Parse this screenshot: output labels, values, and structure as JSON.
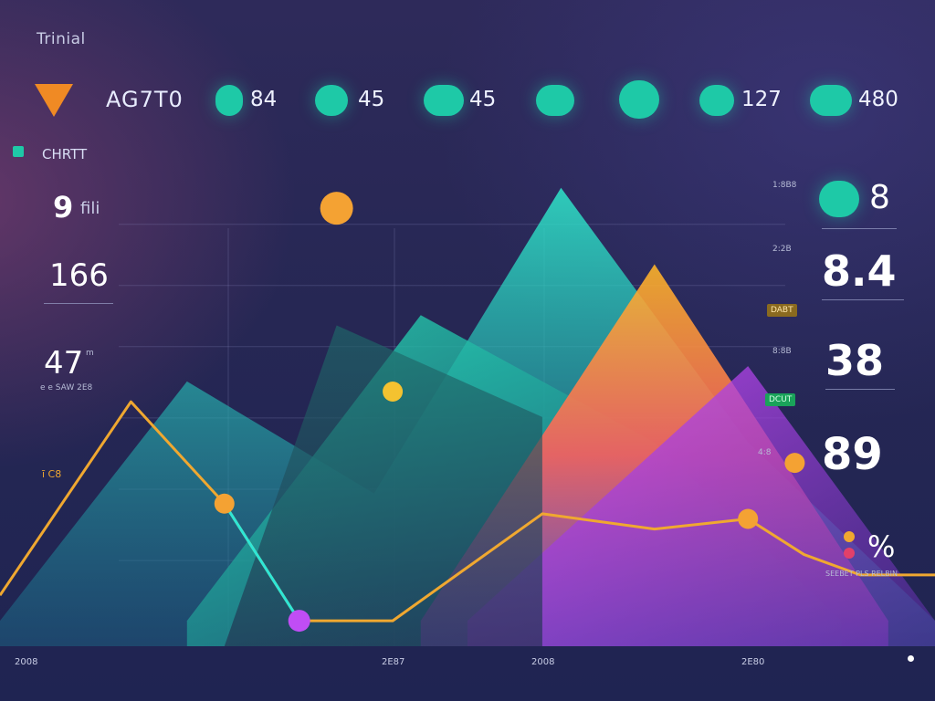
{
  "header": {
    "title": "Trinial",
    "code": "AG7T0",
    "metrics": [
      {
        "badge": "",
        "value": "84"
      },
      {
        "badge": "",
        "value": "45"
      },
      {
        "badge": "",
        "value": "45"
      },
      {
        "badge": "",
        "value": ""
      },
      {
        "badge": "",
        "value": ""
      },
      {
        "badge": "",
        "value": "127"
      },
      {
        "badge": "",
        "value": "480"
      }
    ],
    "accent": "#1ec9a7",
    "logo_color": "#f08a24"
  },
  "left_panel": {
    "chart_label": "CHRTT",
    "stat_1": "9",
    "stat_1_unit": "fili",
    "stat_2": "166",
    "stat_3": "47",
    "stat_3_unit": "m",
    "stat_3_caption": "e e SAW 2E8",
    "stat_4_caption": "ī C8"
  },
  "right_panel": {
    "stat_a": "8",
    "stat_a_tick": "1:8B8",
    "stat_b": "8.4",
    "stat_b_tick": "2:2B",
    "stat_c": "38",
    "stat_c_tick": "8:8B",
    "stat_c_badge_1": "DABT",
    "stat_c_badge_2": "DCUT",
    "stat_d": "89",
    "stat_d_tick": "4:8",
    "percent": "%",
    "percent_caption": "SEEBET PLS RELBIN"
  },
  "chart_data": {
    "type": "area",
    "x_tick_labels": [
      "2008",
      "2E87",
      "2008",
      "2E80"
    ],
    "x_tick_positions_note": "approximate",
    "series": [
      {
        "name": "",
        "color": "#1fd1b4",
        "x": [
          0,
          20,
          40,
          60,
          80,
          100
        ],
        "values": [
          5,
          52,
          30,
          90,
          40,
          5
        ]
      },
      {
        "name": "",
        "color": "#1ec9a7",
        "x": [
          20,
          45,
          70,
          90
        ],
        "values": [
          5,
          65,
          40,
          5
        ]
      },
      {
        "name": "",
        "color": "#ff8a3a",
        "x": [
          45,
          70,
          95
        ],
        "values": [
          5,
          75,
          5
        ]
      },
      {
        "name": "",
        "color": "#b04dff",
        "x": [
          50,
          80,
          100
        ],
        "values": [
          5,
          55,
          5
        ]
      }
    ],
    "line_series": [
      {
        "name": "",
        "color": "#f0a830",
        "x": [
          0,
          14,
          24,
          32,
          42,
          58,
          70,
          80,
          86,
          92,
          100
        ],
        "values": [
          10,
          48,
          28,
          5,
          5,
          26,
          23,
          25,
          18,
          14,
          14
        ]
      },
      {
        "name": "",
        "color": "#2ee6d6",
        "x": [
          24,
          32
        ],
        "values": [
          28,
          5
        ]
      }
    ],
    "points": [
      {
        "x": 36,
        "y": 86,
        "color": "#f4a233"
      },
      {
        "x": 42,
        "y": 50,
        "color": "#f4c230"
      },
      {
        "x": 24,
        "y": 28,
        "color": "#f4a233"
      },
      {
        "x": 32,
        "y": 5,
        "color": "#c04df5"
      },
      {
        "x": 80,
        "y": 25,
        "color": "#f4a233"
      },
      {
        "x": 85,
        "y": 36,
        "color": "#f4a233"
      }
    ],
    "ylim": [
      0,
      100
    ],
    "xlim": [
      0,
      100
    ],
    "grid": true
  }
}
